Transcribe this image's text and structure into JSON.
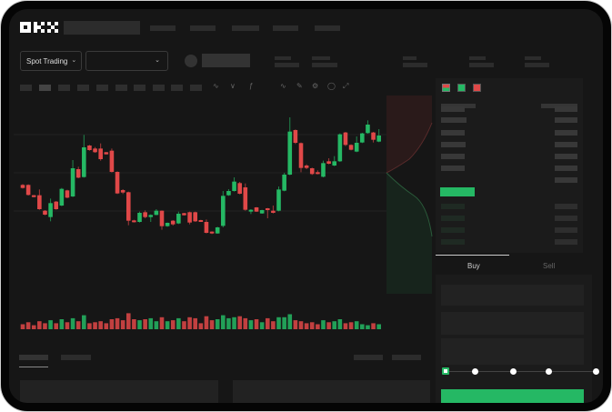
{
  "header": {
    "logo": "OKX"
  },
  "toolbar": {
    "market_select": "Spot Trading",
    "pair_select": ""
  },
  "order_form": {
    "tabs": [
      {
        "label": "Buy",
        "active": true
      },
      {
        "label": "Sell",
        "active": false
      }
    ],
    "leverage_slider_level": 0,
    "slider_stops": 5
  },
  "colors": {
    "up": "#25b864",
    "down": "#e04848",
    "background": "#161616",
    "accent_button": "#25b864"
  },
  "chart_data": {
    "type": "candlestick",
    "title": "",
    "xlabel": "",
    "ylabel": "",
    "candles": [
      [
        200,
        190,
        203,
        188
      ],
      [
        200,
        167,
        202,
        165
      ],
      [
        166,
        160,
        167,
        159
      ],
      [
        166,
        120,
        185,
        118
      ],
      [
        115,
        102,
        117,
        100
      ],
      [
        94,
        140,
        155,
        80
      ],
      [
        145,
        120,
        147,
        118
      ],
      [
        132,
        187,
        190,
        130
      ],
      [
        182,
        158,
        184,
        156
      ],
      [
        162,
        255,
        282,
        160
      ],
      [
        252,
        224,
        260,
        222
      ],
      [
        226,
        324,
        365,
        224
      ],
      [
        330,
        315,
        332,
        313
      ],
      [
        320,
        308,
        325,
        306
      ],
      [
        320,
        285,
        337,
        280
      ],
      [
        308,
        301,
        309,
        300
      ],
      [
        313,
        243,
        320,
        241
      ],
      [
        243,
        172,
        245,
        170
      ],
      [
        183,
        175,
        186,
        170
      ],
      [
        176,
        82,
        178,
        67
      ],
      [
        83,
        78,
        85,
        76
      ],
      [
        78,
        108,
        112,
        76
      ],
      [
        110,
        94,
        116,
        90
      ],
      [
        94,
        101,
        103,
        78
      ],
      [
        101,
        115,
        120,
        100
      ],
      [
        115,
        64,
        116,
        52
      ],
      [
        64,
        75,
        76,
        62
      ],
      [
        82,
        70,
        84,
        66
      ],
      [
        73,
        105,
        112,
        71
      ],
      [
        107,
        100,
        108,
        99
      ],
      [
        110,
        76,
        112,
        70
      ],
      [
        110,
        80,
        112,
        78
      ],
      [
        84,
        80,
        85,
        79
      ],
      [
        78,
        42,
        86,
        40
      ],
      [
        46,
        40,
        47,
        38
      ],
      [
        40,
        60,
        62,
        39
      ],
      [
        65,
        164,
        180,
        60
      ],
      [
        166,
        180,
        186,
        164
      ],
      [
        180,
        211,
        225,
        178
      ],
      [
        206,
        171,
        210,
        169
      ],
      [
        192,
        118,
        205,
        115
      ],
      [
        112,
        118,
        120,
        104
      ],
      [
        126,
        112,
        127,
        111
      ],
      [
        106,
        117,
        118,
        105
      ],
      [
        123,
        118,
        124,
        90
      ],
      [
        115,
        108,
        132,
        106
      ],
      [
        115,
        185,
        195,
        113
      ],
      [
        181,
        234,
        240,
        179
      ],
      [
        234,
        376,
        423,
        232
      ],
      [
        381,
        339,
        383,
        335
      ],
      [
        338,
        256,
        340,
        242
      ],
      [
        264,
        256,
        268,
        252
      ],
      [
        255,
        236,
        257,
        233
      ],
      [
        242,
        236,
        248,
        235
      ],
      [
        227,
        272,
        280,
        225
      ],
      [
        278,
        270,
        288,
        268
      ],
      [
        264,
        278,
        295,
        262
      ],
      [
        278,
        367,
        370,
        276
      ],
      [
        373,
        332,
        375,
        328
      ],
      [
        332,
        316,
        334,
        314
      ],
      [
        310,
        339,
        360,
        308
      ],
      [
        340,
        370,
        372,
        338
      ],
      [
        371,
        399,
        413,
        369
      ],
      [
        373,
        349,
        375,
        340
      ],
      [
        343,
        363,
        384,
        341
      ]
    ],
    "volume": [
      5,
      7,
      4,
      8,
      6,
      9,
      6,
      10,
      7,
      11,
      8,
      14,
      6,
      7,
      8,
      6,
      10,
      11,
      9,
      16,
      10,
      9,
      10,
      11,
      8,
      12,
      8,
      9,
      11,
      8,
      12,
      11,
      6,
      13,
      9,
      10,
      14,
      11,
      12,
      13,
      11,
      9,
      10,
      7,
      11,
      8,
      12,
      12,
      15,
      9,
      8,
      6,
      7,
      5,
      9,
      7,
      8,
      10,
      6,
      7,
      8,
      5,
      4,
      6,
      5
    ],
    "grid": true
  }
}
